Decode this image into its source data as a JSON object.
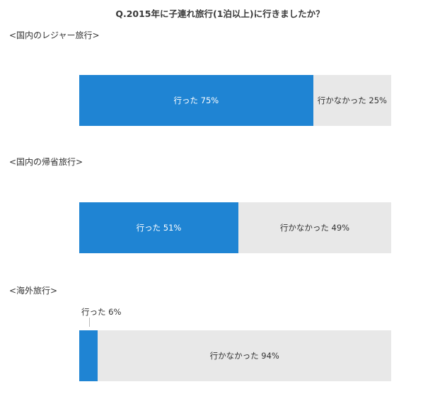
{
  "title": "Q.2015年に子連れ旅行(1泊以上)に行きましたか？",
  "colors": {
    "yes": "#1f84d3",
    "no": "#e8e8e8",
    "yes_text": "#ffffff",
    "no_text": "#333333"
  },
  "sections": [
    {
      "label": "<国内のレジャー旅行>",
      "yes_label": "行った 75%",
      "no_label": "行かなかった 25%"
    },
    {
      "label": "<国内の帰省旅行>",
      "yes_label": "行った 51%",
      "no_label": "行かなかった 49%"
    },
    {
      "label": "<海外旅行>",
      "yes_label": "行った 6%",
      "no_label": "行かなかった 94%"
    }
  ],
  "chart_data": {
    "type": "bar",
    "orientation": "horizontal-stacked-100",
    "title": "Q.2015年に子連れ旅行(1泊以上)に行きましたか？",
    "categories": [
      "<国内のレジャー旅行>",
      "<国内の帰省旅行>",
      "<海外旅行>"
    ],
    "series": [
      {
        "name": "行った",
        "values": [
          75,
          51,
          6
        ]
      },
      {
        "name": "行かなかった",
        "values": [
          25,
          49,
          94
        ]
      }
    ],
    "unit": "%",
    "legend": "none",
    "grid": false
  }
}
